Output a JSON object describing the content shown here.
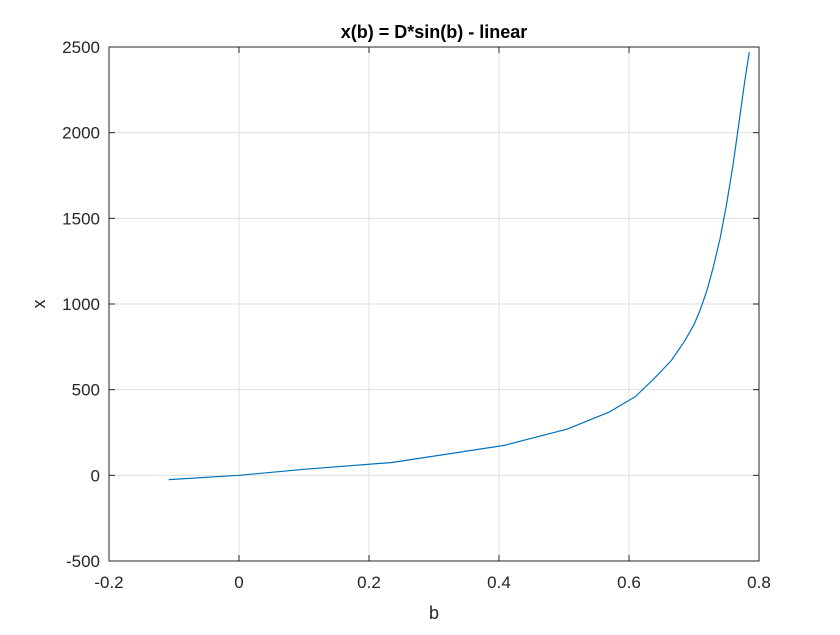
{
  "chart_data": {
    "type": "line",
    "title": "x(b) = D*sin(b) - linear",
    "xlabel": "b",
    "ylabel": "x",
    "xlim": [
      -0.2,
      0.8
    ],
    "ylim": [
      -500,
      2500
    ],
    "xticks": [
      -0.2,
      0,
      0.2,
      0.4,
      0.6,
      0.8
    ],
    "xtick_labels": [
      "-0.2",
      "0",
      "0.2",
      "0.4",
      "0.6",
      "0.8"
    ],
    "yticks": [
      -500,
      0,
      500,
      1000,
      1500,
      2000,
      2500
    ],
    "ytick_labels": [
      "-500",
      "0",
      "500",
      "1000",
      "1500",
      "2000",
      "2500"
    ],
    "grid": true,
    "series": [
      {
        "color": "#0072BD",
        "x": [
          -0.108,
          0.0,
          0.1,
          0.235,
          0.33,
          0.408,
          0.505,
          0.57,
          0.61,
          0.64,
          0.665,
          0.685,
          0.7,
          0.71,
          0.72,
          0.73,
          0.74,
          0.75,
          0.76,
          0.77,
          0.778,
          0.785
        ],
        "y": [
          -25,
          0,
          35,
          75,
          130,
          175,
          270,
          370,
          460,
          570,
          670,
          780,
          880,
          970,
          1080,
          1220,
          1380,
          1580,
          1810,
          2080,
          2300,
          2470
        ]
      }
    ]
  }
}
